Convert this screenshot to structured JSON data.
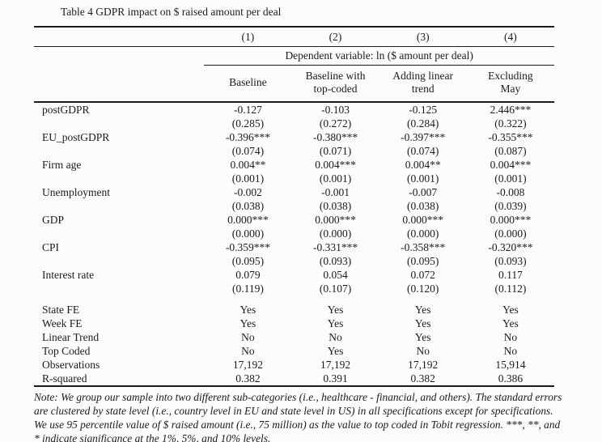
{
  "page": {
    "title": "Table 4 GDPR impact on $ raised amount per deal"
  },
  "table": {
    "model_numbers": [
      "(1)",
      "(2)",
      "(3)",
      "(4)"
    ],
    "dependent_variable_label": "Dependent variable: ln ($ amount per deal)",
    "column_headers": [
      [
        "Baseline"
      ],
      [
        "Baseline with",
        "top-coded"
      ],
      [
        "Adding linear",
        "trend"
      ],
      [
        "Excluding",
        "May"
      ]
    ],
    "rows": [
      {
        "label": "postGDPR",
        "values": [
          "-0.127",
          "-0.103",
          "-0.125",
          "2.446***"
        ]
      },
      {
        "label": "",
        "values": [
          "(0.285)",
          "(0.272)",
          "(0.284)",
          "(0.322)"
        ]
      },
      {
        "label": "EU_postGDPR",
        "values": [
          "-0.396***",
          "-0.380***",
          "-0.397***",
          "-0.355***"
        ]
      },
      {
        "label": "",
        "values": [
          "(0.074)",
          "(0.071)",
          "(0.074)",
          "(0.087)"
        ]
      },
      {
        "label": "Firm age",
        "values": [
          "0.004**",
          "0.004***",
          "0.004**",
          "0.004***"
        ]
      },
      {
        "label": "",
        "values": [
          "(0.001)",
          "(0.001)",
          "(0.001)",
          "(0.001)"
        ]
      },
      {
        "label": "Unemployment",
        "values": [
          "-0.002",
          "-0.001",
          "-0.007",
          "-0.008"
        ]
      },
      {
        "label": "",
        "values": [
          "(0.038)",
          "(0.038)",
          "(0.038)",
          "(0.039)"
        ]
      },
      {
        "label": "GDP",
        "values": [
          "0.000***",
          "0.000***",
          "0.000***",
          "0.000***"
        ]
      },
      {
        "label": "",
        "values": [
          "(0.000)",
          "(0.000)",
          "(0.000)",
          "(0.000)"
        ]
      },
      {
        "label": "CPI",
        "values": [
          "-0.359***",
          "-0.331***",
          "-0.358***",
          "-0.320***"
        ]
      },
      {
        "label": "",
        "values": [
          "(0.095)",
          "(0.093)",
          "(0.095)",
          "(0.093)"
        ]
      },
      {
        "label": "Interest rate",
        "values": [
          "0.079",
          "0.054",
          "0.072",
          "0.117"
        ]
      },
      {
        "label": "",
        "values": [
          "(0.119)",
          "(0.107)",
          "(0.120)",
          "(0.112)"
        ]
      },
      {
        "spacer": true
      },
      {
        "label": "State FE",
        "values": [
          "Yes",
          "Yes",
          "Yes",
          "Yes"
        ]
      },
      {
        "label": "Week FE",
        "values": [
          "Yes",
          "Yes",
          "Yes",
          "Yes"
        ]
      },
      {
        "label": "Linear Trend",
        "values": [
          "No",
          "No",
          "Yes",
          "No"
        ]
      },
      {
        "label": "Top Coded",
        "values": [
          "No",
          "Yes",
          "No",
          "No"
        ]
      },
      {
        "label": "Observations",
        "values": [
          "17,192",
          "17,192",
          "17,192",
          "15,914"
        ]
      },
      {
        "label": "R-squared",
        "values": [
          "0.382",
          "0.391",
          "0.382",
          "0.386"
        ]
      }
    ]
  },
  "note": "Note: We group our sample into two different sub-categories (i.e., healthcare - financial, and others). The standard errors are clustered by state level (i.e., country level in EU and state level in US) in all specifications except for specifications. We use 95 percentile value of $ raised amount (i.e., 75 million) as the value to top coded in Tobit regression. ***, **, and * indicate significance at the 1%, 5%, and 10% levels."
}
